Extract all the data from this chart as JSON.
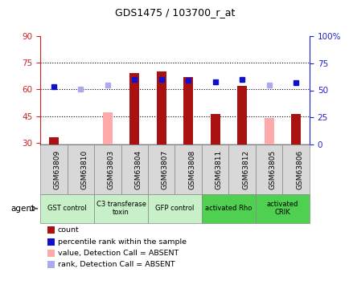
{
  "title": "GDS1475 / 103700_r_at",
  "samples": [
    "GSM63809",
    "GSM63810",
    "GSM63803",
    "GSM63804",
    "GSM63807",
    "GSM63808",
    "GSM63811",
    "GSM63812",
    "GSM63805",
    "GSM63806"
  ],
  "count_values": [
    33,
    null,
    null,
    69,
    70,
    67,
    46,
    62,
    null,
    46
  ],
  "count_absent": [
    null,
    null,
    47,
    null,
    null,
    null,
    null,
    null,
    44,
    null
  ],
  "rank_values": [
    53,
    null,
    null,
    60,
    60,
    59,
    58,
    60,
    null,
    57
  ],
  "rank_absent": [
    null,
    51,
    55,
    null,
    null,
    null,
    null,
    null,
    55,
    null
  ],
  "ylim_left": [
    29,
    90
  ],
  "ylim_right": [
    0,
    100
  ],
  "yticks_left": [
    30,
    45,
    60,
    75,
    90
  ],
  "yticks_right": [
    0,
    25,
    50,
    75,
    100
  ],
  "ytick_labels_right": [
    "0",
    "25",
    "50",
    "75",
    "100%"
  ],
  "gridlines": [
    45,
    60,
    75
  ],
  "agent_groups": [
    {
      "label": "GST control",
      "start": 0,
      "end": 2,
      "color": "#c8f0c8"
    },
    {
      "label": "C3 transferase\ntoxin",
      "start": 2,
      "end": 4,
      "color": "#c8f0c8"
    },
    {
      "label": "GFP control",
      "start": 4,
      "end": 6,
      "color": "#c8f0c8"
    },
    {
      "label": "activated Rho",
      "start": 6,
      "end": 8,
      "color": "#50d050"
    },
    {
      "label": "activated\nCRIK",
      "start": 8,
      "end": 10,
      "color": "#50d050"
    }
  ],
  "bar_width": 0.35,
  "count_color": "#aa1111",
  "count_absent_color": "#ffaaaa",
  "rank_color": "#1111cc",
  "rank_absent_color": "#aaaaee",
  "background_color": "#ffffff",
  "plot_bg": "#ffffff",
  "left_axis_color": "#cc2222",
  "right_axis_color": "#2222cc",
  "sample_box_color": "#d8d8d8",
  "legend_items": [
    {
      "label": "count",
      "color": "#aa1111"
    },
    {
      "label": "percentile rank within the sample",
      "color": "#1111cc"
    },
    {
      "label": "value, Detection Call = ABSENT",
      "color": "#ffaaaa"
    },
    {
      "label": "rank, Detection Call = ABSENT",
      "color": "#aaaaee"
    }
  ]
}
